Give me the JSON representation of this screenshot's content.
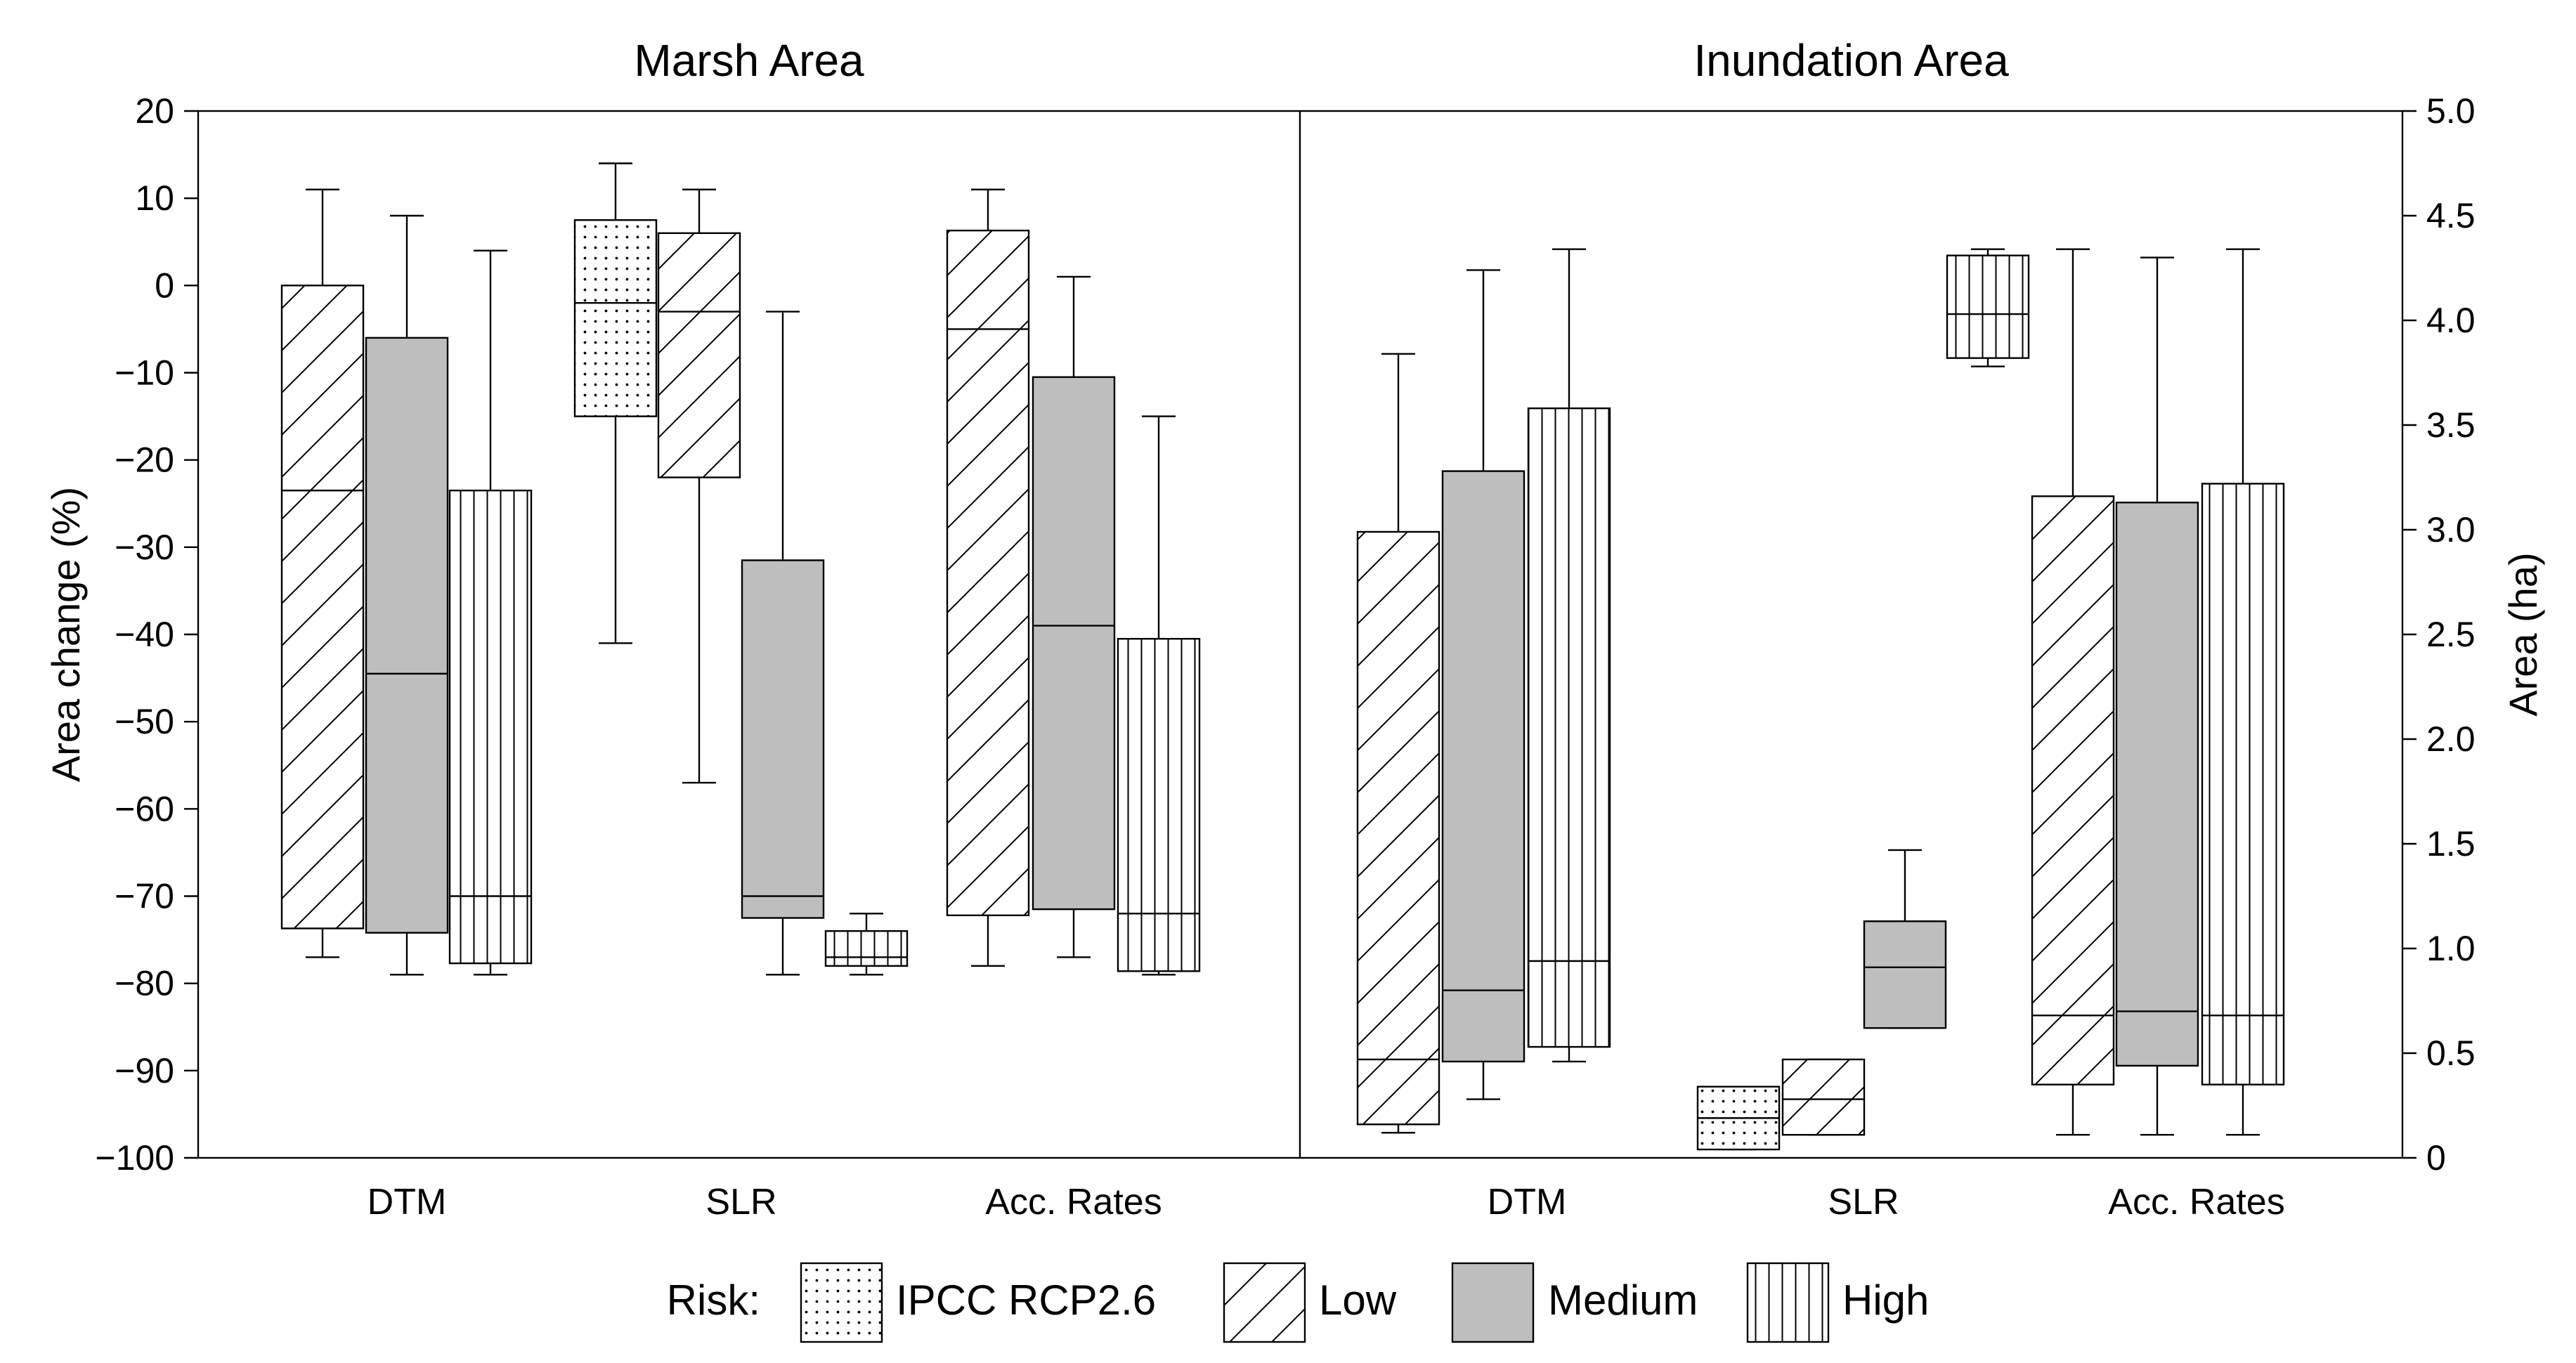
{
  "chart_data": {
    "type": "boxplot",
    "panels": [
      {
        "title": "Marsh Area",
        "ylabel": "Area change (%)",
        "ylim": [
          -100,
          20
        ],
        "yticks": [
          "20",
          "10",
          "0",
          "−10",
          "−20",
          "−30",
          "−40",
          "−50",
          "−60",
          "−70",
          "−80",
          "−90",
          "−100"
        ],
        "ytick_values": [
          20,
          10,
          0,
          -10,
          -20,
          -30,
          -40,
          -50,
          -60,
          -70,
          -80,
          -90,
          -100
        ],
        "groups": [
          "DTM",
          "SLR",
          "Acc. Rates"
        ],
        "boxes": [
          {
            "group": "DTM",
            "risk": "Low",
            "whisker_low": -77,
            "q1": -73.7,
            "median": -23.5,
            "q3": 0,
            "whisker_high": 11
          },
          {
            "group": "DTM",
            "risk": "Medium",
            "whisker_low": -79,
            "q1": -74.2,
            "median": -44.5,
            "q3": -6,
            "whisker_high": 8
          },
          {
            "group": "DTM",
            "risk": "High",
            "whisker_low": -79,
            "q1": -77.7,
            "median": -70,
            "q3": -23.5,
            "whisker_high": 4
          },
          {
            "group": "SLR",
            "risk": "IPCC RCP2.6",
            "whisker_low": -41,
            "q1": -15,
            "median": -2,
            "q3": 7.5,
            "whisker_high": 14
          },
          {
            "group": "SLR",
            "risk": "Low",
            "whisker_low": -57,
            "q1": -22,
            "median": -3,
            "q3": 6,
            "whisker_high": 11
          },
          {
            "group": "SLR",
            "risk": "Medium",
            "whisker_low": -79,
            "q1": -72.5,
            "median": -70,
            "q3": -31.5,
            "whisker_high": -3
          },
          {
            "group": "SLR",
            "risk": "High",
            "whisker_low": -79,
            "q1": -78,
            "median": -77,
            "q3": -74,
            "whisker_high": -72
          },
          {
            "group": "Acc. Rates",
            "risk": "Low",
            "whisker_low": -78,
            "q1": -72.2,
            "median": -5,
            "q3": 6.3,
            "whisker_high": 11
          },
          {
            "group": "Acc. Rates",
            "risk": "Medium",
            "whisker_low": -77,
            "q1": -71.5,
            "median": -39,
            "q3": -10.5,
            "whisker_high": 1
          },
          {
            "group": "Acc. Rates",
            "risk": "High",
            "whisker_low": -79,
            "q1": -78.6,
            "median": -72,
            "q3": -40.5,
            "whisker_high": -15
          }
        ]
      },
      {
        "title": "Inundation Area",
        "ylabel": "Area (ha)",
        "ylim": [
          0,
          5
        ],
        "yticks": [
          "5.0",
          "4.5",
          "4.0",
          "3.5",
          "3.0",
          "2.5",
          "2.0",
          "1.5",
          "1.0",
          "0.5",
          "0"
        ],
        "ytick_values": [
          5.0,
          4.5,
          4.0,
          3.5,
          3.0,
          2.5,
          2.0,
          1.5,
          1.0,
          0.5,
          0
        ],
        "groups": [
          "DTM",
          "SLR",
          "Acc. Rates"
        ],
        "boxes": [
          {
            "group": "DTM",
            "risk": "Low",
            "whisker_low": 0.12,
            "q1": 0.16,
            "median": 0.47,
            "q3": 2.99,
            "whisker_high": 3.84
          },
          {
            "group": "DTM",
            "risk": "Medium",
            "whisker_low": 0.28,
            "q1": 0.46,
            "median": 0.8,
            "q3": 3.28,
            "whisker_high": 4.24
          },
          {
            "group": "DTM",
            "risk": "High",
            "whisker_low": 0.46,
            "q1": 0.53,
            "median": 0.94,
            "q3": 3.58,
            "whisker_high": 4.34
          },
          {
            "group": "SLR",
            "risk": "IPCC RCP2.6",
            "whisker_low": 0.04,
            "q1": 0.04,
            "median": 0.19,
            "q3": 0.34,
            "whisker_high": 0.34
          },
          {
            "group": "SLR",
            "risk": "Low",
            "whisker_low": 0.11,
            "q1": 0.11,
            "median": 0.28,
            "q3": 0.47,
            "whisker_high": 0.47
          },
          {
            "group": "SLR",
            "risk": "Medium",
            "whisker_low": 0.62,
            "q1": 0.62,
            "median": 0.91,
            "q3": 1.13,
            "whisker_high": 1.47
          },
          {
            "group": "SLR",
            "risk": "High",
            "whisker_low": 3.78,
            "q1": 3.82,
            "median": 4.03,
            "q3": 4.31,
            "whisker_high": 4.34
          },
          {
            "group": "Acc. Rates",
            "risk": "Low",
            "whisker_low": 0.11,
            "q1": 0.35,
            "median": 0.68,
            "q3": 3.16,
            "whisker_high": 4.34
          },
          {
            "group": "Acc. Rates",
            "risk": "Medium",
            "whisker_low": 0.11,
            "q1": 0.44,
            "median": 0.7,
            "q3": 3.13,
            "whisker_high": 4.3
          },
          {
            "group": "Acc. Rates",
            "risk": "High",
            "whisker_low": 0.11,
            "q1": 0.35,
            "median": 0.68,
            "q3": 3.22,
            "whisker_high": 4.34
          }
        ]
      }
    ],
    "legend": {
      "title": "Risk:",
      "position": "bottom-center",
      "entries": [
        {
          "label": "IPCC RCP2.6",
          "pattern": "dots",
          "color": "#ffffff"
        },
        {
          "label": "Low",
          "pattern": "diagonal",
          "color": "#ffffff"
        },
        {
          "label": "Medium",
          "pattern": "solid",
          "color": "#bebebe"
        },
        {
          "label": "High",
          "pattern": "vertical",
          "color": "#ffffff"
        }
      ]
    }
  }
}
